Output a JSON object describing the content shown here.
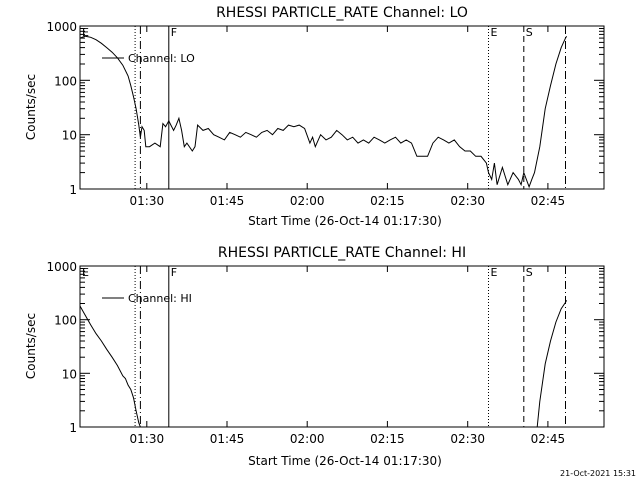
{
  "chart_data": [
    {
      "type": "line",
      "title": "RHESSI PARTICLE_RATE Channel: LO",
      "xlabel": "Start Time (26-Oct-14 01:17:30)",
      "ylabel": "Counts/sec",
      "x_unit": "minutes after 01:17:30",
      "xlim": [
        0,
        98
      ],
      "ylim": [
        1,
        1000
      ],
      "yscale": "log",
      "x_ticks": [
        {
          "t": 12.5,
          "label": "01:30"
        },
        {
          "t": 27.5,
          "label": "01:45"
        },
        {
          "t": 42.5,
          "label": "02:00"
        },
        {
          "t": 57.5,
          "label": "02:15"
        },
        {
          "t": 72.5,
          "label": "02:30"
        },
        {
          "t": 87.5,
          "label": "02:45"
        }
      ],
      "y_ticks": [
        {
          "v": 1,
          "label": "1"
        },
        {
          "v": 10,
          "label": "10"
        },
        {
          "v": 100,
          "label": "100"
        },
        {
          "v": 1000,
          "label": "1000"
        }
      ],
      "legend": {
        "label": "Channel: LO",
        "position": "top-left"
      },
      "markers": [
        {
          "t": 0,
          "label": "E",
          "style": "dotted"
        },
        {
          "t": 10.3,
          "label": "",
          "style": "dotted"
        },
        {
          "t": 11.3,
          "label": "",
          "style": "dashdot"
        },
        {
          "t": 16.6,
          "label": "F",
          "style": "solid"
        },
        {
          "t": 76.4,
          "label": "E",
          "style": "dotted"
        },
        {
          "t": 83.0,
          "label": "S",
          "style": "dashed"
        },
        {
          "t": 90.8,
          "label": "",
          "style": "dashdot"
        }
      ],
      "series": [
        {
          "name": "Channel: LO",
          "points": [
            [
              0,
              600
            ],
            [
              1,
              650
            ],
            [
              2,
              620
            ],
            [
              3,
              560
            ],
            [
              4,
              480
            ],
            [
              5,
              400
            ],
            [
              6,
              330
            ],
            [
              7,
              260
            ],
            [
              8,
              190
            ],
            [
              9,
              120
            ],
            [
              9.5,
              80
            ],
            [
              10,
              50
            ],
            [
              10.5,
              30
            ],
            [
              11,
              15
            ],
            [
              11.3,
              9
            ],
            [
              11.6,
              14
            ],
            [
              12,
              12
            ],
            [
              12.3,
              6
            ],
            [
              13,
              6
            ],
            [
              14,
              7
            ],
            [
              15,
              6
            ],
            [
              15.5,
              16
            ],
            [
              16,
              14
            ],
            [
              16.6,
              18
            ],
            [
              17,
              15
            ],
            [
              17.5,
              12
            ],
            [
              18,
              15
            ],
            [
              18.5,
              20
            ],
            [
              19,
              12
            ],
            [
              19.5,
              6
            ],
            [
              20,
              7
            ],
            [
              21,
              5
            ],
            [
              21.5,
              6
            ],
            [
              22,
              15
            ],
            [
              23,
              12
            ],
            [
              24,
              13
            ],
            [
              25,
              10
            ],
            [
              26,
              9
            ],
            [
              27,
              8
            ],
            [
              28,
              11
            ],
            [
              29,
              10
            ],
            [
              30,
              9
            ],
            [
              31,
              11
            ],
            [
              32,
              10
            ],
            [
              33,
              9
            ],
            [
              34,
              11
            ],
            [
              35,
              12
            ],
            [
              36,
              10
            ],
            [
              37,
              13
            ],
            [
              38,
              12
            ],
            [
              39,
              15
            ],
            [
              40,
              14
            ],
            [
              41,
              15
            ],
            [
              42,
              13
            ],
            [
              43,
              7
            ],
            [
              43.5,
              9
            ],
            [
              44,
              6
            ],
            [
              45,
              10
            ],
            [
              46,
              8
            ],
            [
              47,
              9
            ],
            [
              48,
              12
            ],
            [
              49,
              10
            ],
            [
              50,
              8
            ],
            [
              51,
              9
            ],
            [
              52,
              7
            ],
            [
              53,
              8
            ],
            [
              54,
              7
            ],
            [
              55,
              9
            ],
            [
              56,
              8
            ],
            [
              57,
              7
            ],
            [
              58,
              8
            ],
            [
              59,
              9
            ],
            [
              60,
              7
            ],
            [
              61,
              8
            ],
            [
              62,
              7
            ],
            [
              63,
              4
            ],
            [
              64,
              4
            ],
            [
              65,
              4
            ],
            [
              66,
              7
            ],
            [
              67,
              9
            ],
            [
              68,
              8
            ],
            [
              69,
              7
            ],
            [
              70,
              8
            ],
            [
              71,
              6
            ],
            [
              72,
              5
            ],
            [
              73,
              5
            ],
            [
              74,
              4
            ],
            [
              75,
              4
            ],
            [
              76,
              3
            ],
            [
              76.4,
              2
            ],
            [
              77,
              1.5
            ],
            [
              77.5,
              3
            ],
            [
              78,
              1.2
            ],
            [
              79,
              2.5
            ],
            [
              80,
              1.2
            ],
            [
              81,
              2
            ],
            [
              82,
              1.5
            ],
            [
              82.5,
              1.2
            ],
            [
              83,
              2
            ],
            [
              84,
              1.1
            ],
            [
              84.5,
              1.5
            ],
            [
              85,
              2
            ],
            [
              86,
              6
            ],
            [
              87,
              30
            ],
            [
              88,
              80
            ],
            [
              89,
              200
            ],
            [
              90,
              400
            ],
            [
              90.8,
              600
            ],
            [
              91,
              650
            ]
          ]
        }
      ]
    },
    {
      "type": "line",
      "title": "RHESSI PARTICLE_RATE Channel: HI",
      "xlabel": "Start Time (26-Oct-14 01:17:30)",
      "ylabel": "Counts/sec",
      "x_unit": "minutes after 01:17:30",
      "xlim": [
        0,
        98
      ],
      "ylim": [
        1,
        1000
      ],
      "yscale": "log",
      "x_ticks": [
        {
          "t": 12.5,
          "label": "01:30"
        },
        {
          "t": 27.5,
          "label": "01:45"
        },
        {
          "t": 42.5,
          "label": "02:00"
        },
        {
          "t": 57.5,
          "label": "02:15"
        },
        {
          "t": 72.5,
          "label": "02:30"
        },
        {
          "t": 87.5,
          "label": "02:45"
        }
      ],
      "y_ticks": [
        {
          "v": 1,
          "label": "1"
        },
        {
          "v": 10,
          "label": "10"
        },
        {
          "v": 100,
          "label": "100"
        },
        {
          "v": 1000,
          "label": "1000"
        }
      ],
      "legend": {
        "label": "Channel: HI",
        "position": "top-left"
      },
      "markers": [
        {
          "t": 0,
          "label": "E",
          "style": "dotted"
        },
        {
          "t": 10.3,
          "label": "",
          "style": "dotted"
        },
        {
          "t": 11.3,
          "label": "",
          "style": "dashdot"
        },
        {
          "t": 16.6,
          "label": "F",
          "style": "solid"
        },
        {
          "t": 76.4,
          "label": "E",
          "style": "dotted"
        },
        {
          "t": 83.0,
          "label": "S",
          "style": "dashed"
        },
        {
          "t": 90.8,
          "label": "",
          "style": "dashdot"
        }
      ],
      "series": [
        {
          "name": "Channel: HI",
          "points": [
            [
              0,
              180
            ],
            [
              1,
              120
            ],
            [
              2,
              80
            ],
            [
              3,
              55
            ],
            [
              4,
              40
            ],
            [
              5,
              28
            ],
            [
              6,
              20
            ],
            [
              7,
              14
            ],
            [
              8,
              9
            ],
            [
              8.5,
              8
            ],
            [
              9,
              6
            ],
            [
              9.5,
              5
            ],
            [
              10,
              3.5
            ],
            [
              10.5,
              2
            ],
            [
              11,
              1.2
            ],
            [
              11.3,
              1
            ]
          ]
        },
        {
          "name": "",
          "points": [
            [
              85.5,
              1
            ],
            [
              86,
              3
            ],
            [
              87,
              15
            ],
            [
              88,
              40
            ],
            [
              89,
              90
            ],
            [
              90,
              160
            ],
            [
              90.8,
              210
            ],
            [
              91,
              230
            ]
          ]
        }
      ]
    }
  ],
  "timestamp": "21-Oct-2021 15:31"
}
